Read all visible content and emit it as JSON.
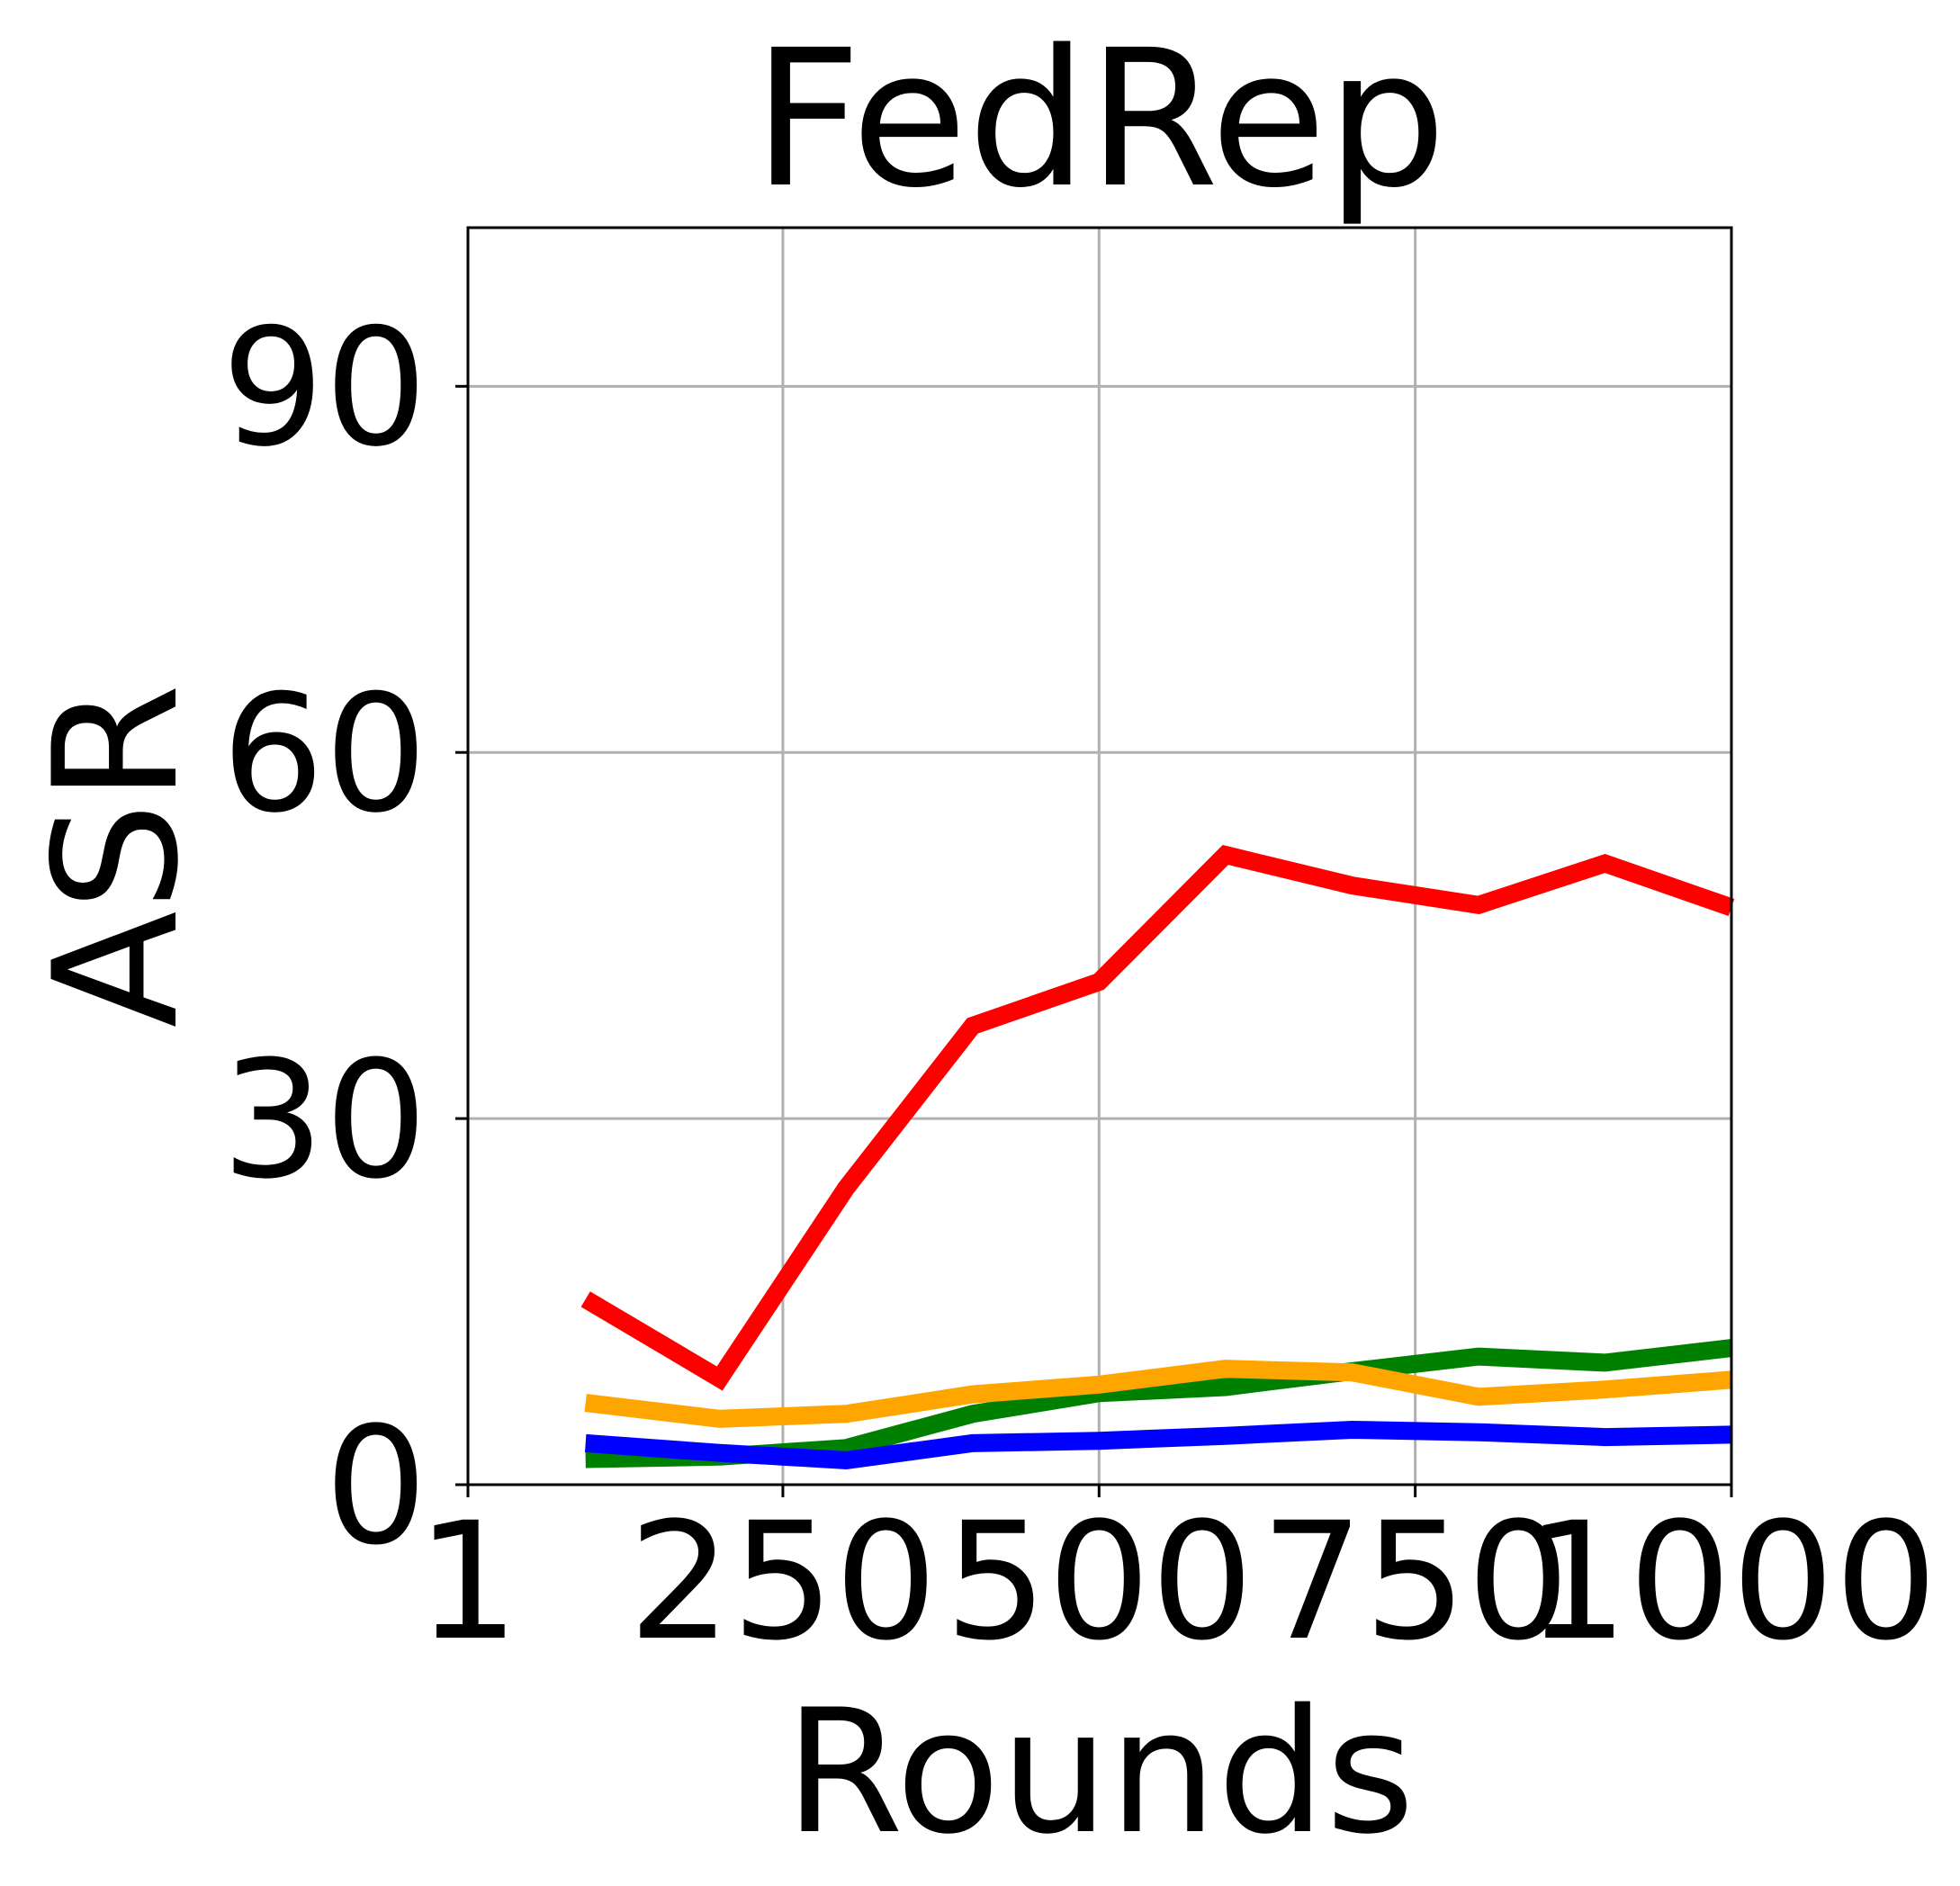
{
  "chart_data": {
    "type": "line",
    "title": "FedRep",
    "xlabel": "Rounds",
    "ylabel": "ASR",
    "xlim": [
      1,
      1000
    ],
    "ylim": [
      0,
      103
    ],
    "xticks": [
      1,
      250,
      500,
      750,
      1000
    ],
    "xtick_labels": [
      "1",
      "250",
      "500",
      "750",
      "1000"
    ],
    "yticks": [
      0,
      30,
      60,
      90
    ],
    "ytick_labels": [
      "0",
      "30",
      "60",
      "90"
    ],
    "grid": true,
    "x": [
      94,
      200,
      300,
      400,
      500,
      600,
      700,
      800,
      900,
      1000
    ],
    "series": [
      {
        "color": "#008000",
        "values": [
          2.1,
          2.3,
          3.0,
          5.8,
          7.5,
          8.0,
          9.3,
          10.5,
          10.0,
          11.2
        ]
      },
      {
        "color": "#ffa500",
        "values": [
          6.7,
          5.4,
          5.8,
          7.4,
          8.2,
          9.5,
          9.2,
          7.2,
          7.8,
          8.6
        ]
      },
      {
        "color": "#0000ff",
        "values": [
          3.4,
          2.6,
          2.0,
          3.4,
          3.6,
          4.0,
          4.5,
          4.3,
          3.9,
          4.1
        ]
      },
      {
        "color": "#ff0000",
        "values": [
          15.2,
          8.7,
          24.3,
          37.6,
          41.2,
          51.6,
          49.1,
          47.5,
          50.9,
          47.3
        ]
      }
    ]
  }
}
